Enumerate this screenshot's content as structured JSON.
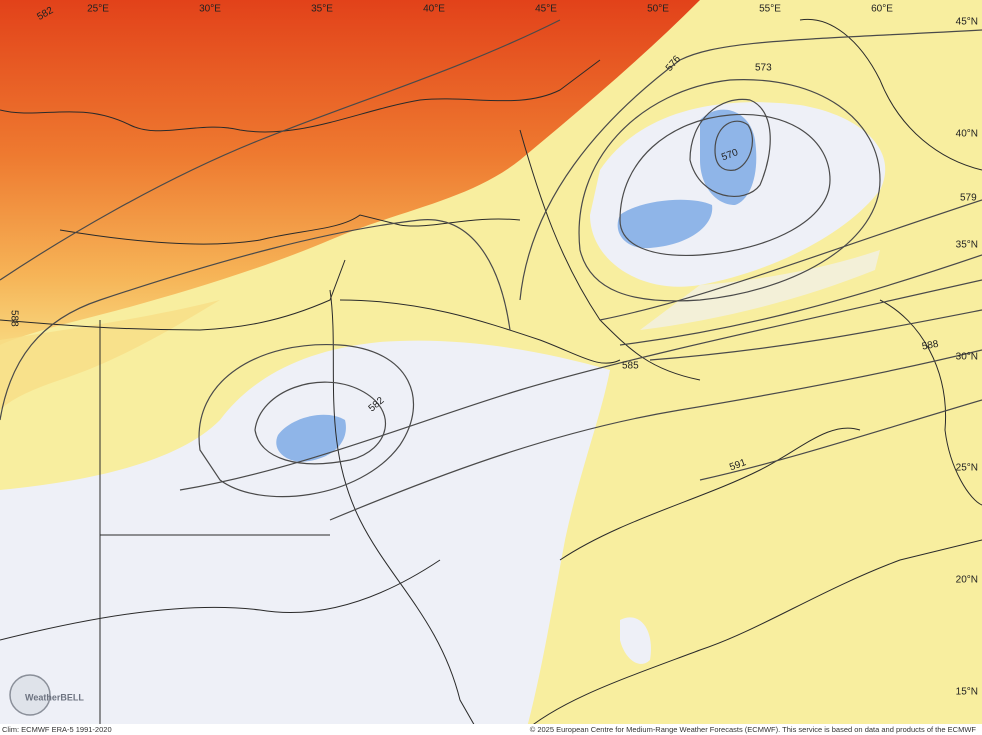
{
  "map": {
    "longitude_labels": [
      "25°E",
      "30°E",
      "35°E",
      "40°E",
      "45°E",
      "50°E",
      "55°E",
      "60°E"
    ],
    "latitude_labels": [
      "45°N",
      "40°N",
      "35°N",
      "30°N",
      "25°N",
      "20°N",
      "15°N"
    ],
    "contour_labels": [
      "582",
      "576",
      "573",
      "570",
      "579",
      "588",
      "585",
      "582",
      "591",
      "588"
    ],
    "logo": "WeatherBELL",
    "footer_left": "Clim: ECMWF ERA-5 1991-2020",
    "footer_right": "© 2025 European Centre for Medium-Range Weather Forecasts (ECMWF). This service is based on data and products of the ECMWF"
  }
}
